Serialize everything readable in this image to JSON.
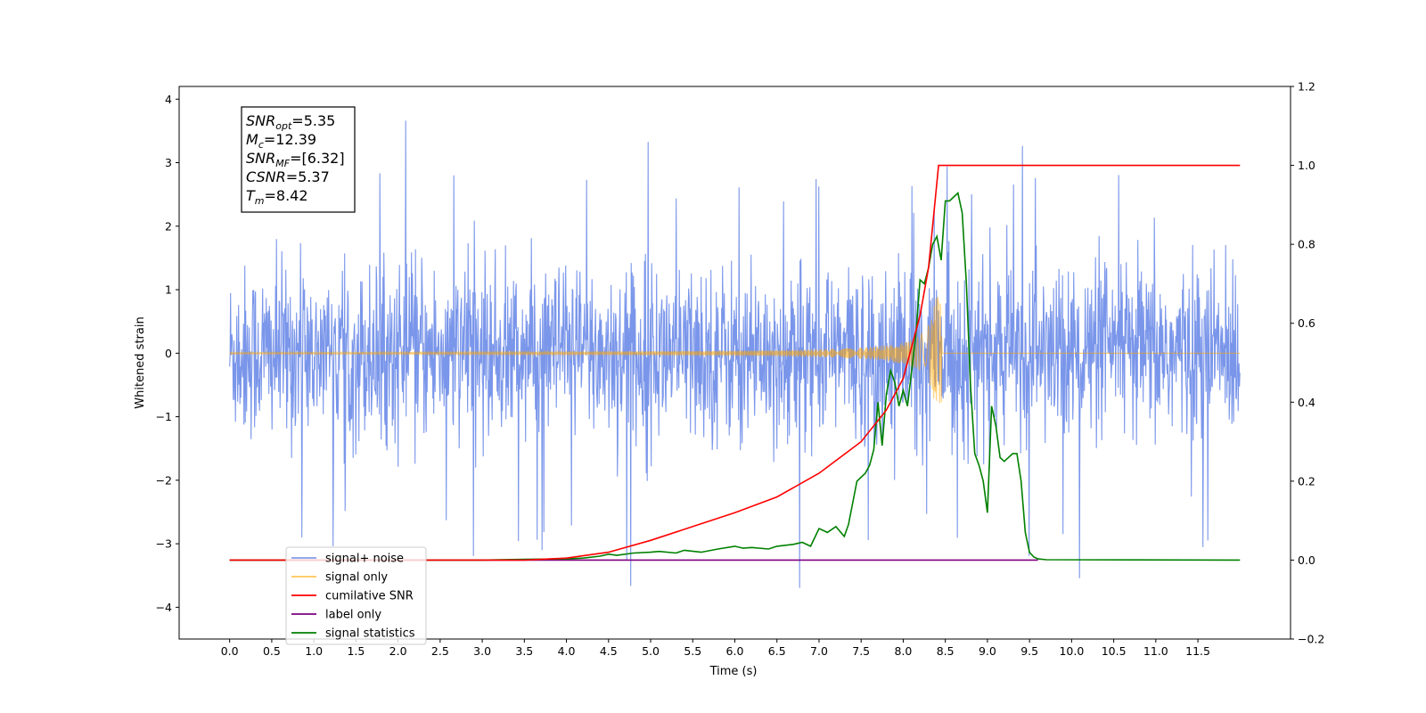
{
  "chart_data": {
    "type": "line",
    "xlabel": "Time (s)",
    "ylabel": "Whitened strain",
    "xlim": [
      -0.6,
      12.6
    ],
    "ylim": [
      -4.5,
      4.2
    ],
    "y2lim": [
      -0.2,
      1.2
    ],
    "x_ticks": [
      0.0,
      0.5,
      1.0,
      1.5,
      2.0,
      2.5,
      3.0,
      3.5,
      4.0,
      4.5,
      5.0,
      5.5,
      6.0,
      6.5,
      7.0,
      7.5,
      8.0,
      8.5,
      9.0,
      9.5,
      10.0,
      10.5,
      11.0,
      11.5
    ],
    "x_tick_labels": [
      "0.0",
      "0.5",
      "1.0",
      "1.5",
      "2.0",
      "2.5",
      "3.0",
      "3.5",
      "4.0",
      "4.5",
      "5.0",
      "5.5",
      "6.0",
      "6.5",
      "7.0",
      "7.5",
      "8.0",
      "8.5",
      "9.0",
      "9.5",
      "10.0",
      "10.5",
      "11.0",
      "11.5"
    ],
    "y_ticks": [
      -4,
      -3,
      -2,
      -1,
      0,
      1,
      2,
      3,
      4
    ],
    "y_tick_labels": [
      "−4",
      "−3",
      "−2",
      "−1",
      "0",
      "1",
      "2",
      "3",
      "4"
    ],
    "y2_ticks": [
      -0.2,
      0.0,
      0.2,
      0.4,
      0.6,
      0.8,
      1.0,
      1.2
    ],
    "y2_tick_labels": [
      "−0.2",
      "0.0",
      "0.2",
      "0.4",
      "0.6",
      "0.8",
      "1.0",
      "1.2"
    ],
    "grid": false,
    "legend_position": "lower-left",
    "annotation": {
      "lines": [
        {
          "base": "SNR",
          "sub": "opt",
          "value": "=5.35"
        },
        {
          "base": "M",
          "sub": "c",
          "value": "=12.39"
        },
        {
          "base": "SNR",
          "sub": "MF",
          "value": "=[6.32]"
        },
        {
          "base": "CSNR",
          "sub": "",
          "value": "=5.37"
        },
        {
          "base": "T",
          "sub": "m",
          "value": "=8.42"
        }
      ]
    },
    "series": [
      {
        "name": "signal+ noise",
        "axis": "left",
        "color": "#4169e1",
        "style": "dense noise band",
        "x_range": [
          0.0,
          12.0
        ],
        "band_typical": [
          -1.7,
          1.8
        ],
        "band_max": [
          -4.1,
          3.8
        ],
        "peak_x": [
          8.42,
          8.5,
          11.3,
          2.9
        ]
      },
      {
        "name": "signal only",
        "axis": "left",
        "color": "#ffa500",
        "style": "chirp",
        "x_range": [
          0.0,
          12.0
        ],
        "merger_time": 8.42,
        "peak_amplitude": 0.9
      },
      {
        "name": "cumilative SNR",
        "axis": "right",
        "color": "#ff0000",
        "x": [
          0.0,
          3.5,
          4.0,
          4.5,
          5.0,
          5.5,
          6.0,
          6.5,
          7.0,
          7.5,
          7.8,
          8.0,
          8.2,
          8.3,
          8.42,
          8.43,
          12.0
        ],
        "values": [
          0.0,
          0.0,
          0.005,
          0.02,
          0.05,
          0.085,
          0.12,
          0.16,
          0.22,
          0.3,
          0.38,
          0.46,
          0.62,
          0.74,
          1.0,
          1.0,
          1.0
        ]
      },
      {
        "name": "label only",
        "axis": "right",
        "color": "#800080",
        "x": [
          0.0,
          9.6
        ],
        "values": [
          0.0,
          0.0
        ]
      },
      {
        "name": "signal statistics",
        "axis": "right",
        "color": "#008000",
        "x": [
          0.0,
          3.0,
          3.5,
          4.0,
          4.2,
          4.4,
          4.5,
          4.6,
          4.8,
          5.0,
          5.1,
          5.3,
          5.4,
          5.6,
          5.8,
          6.0,
          6.1,
          6.2,
          6.4,
          6.5,
          6.7,
          6.8,
          6.9,
          7.0,
          7.1,
          7.2,
          7.3,
          7.35,
          7.45,
          7.55,
          7.6,
          7.65,
          7.7,
          7.75,
          7.8,
          7.85,
          7.9,
          7.95,
          8.0,
          8.05,
          8.15,
          8.2,
          8.25,
          8.3,
          8.35,
          8.4,
          8.45,
          8.5,
          8.55,
          8.6,
          8.65,
          8.7,
          8.75,
          8.8,
          8.85,
          8.9,
          8.95,
          9.0,
          9.05,
          9.1,
          9.15,
          9.2,
          9.3,
          9.35,
          9.4,
          9.45,
          9.5,
          9.55,
          9.6,
          9.7,
          12.0
        ],
        "values": [
          0.0,
          0.0,
          0.002,
          0.003,
          0.005,
          0.01,
          0.015,
          0.012,
          0.018,
          0.02,
          0.022,
          0.018,
          0.025,
          0.02,
          0.028,
          0.035,
          0.03,
          0.032,
          0.028,
          0.035,
          0.04,
          0.045,
          0.035,
          0.08,
          0.07,
          0.085,
          0.06,
          0.09,
          0.2,
          0.22,
          0.24,
          0.28,
          0.4,
          0.29,
          0.42,
          0.48,
          0.45,
          0.39,
          0.43,
          0.39,
          0.57,
          0.71,
          0.7,
          0.74,
          0.8,
          0.82,
          0.76,
          0.91,
          0.91,
          0.92,
          0.93,
          0.88,
          0.7,
          0.44,
          0.27,
          0.24,
          0.2,
          0.12,
          0.39,
          0.34,
          0.26,
          0.25,
          0.27,
          0.27,
          0.2,
          0.07,
          0.02,
          0.008,
          0.003,
          0.001,
          0.0
        ]
      }
    ]
  }
}
